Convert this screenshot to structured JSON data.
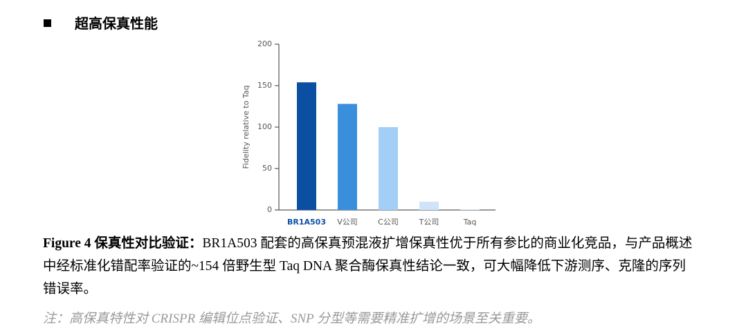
{
  "heading": "超高保真性能",
  "chart_data": {
    "type": "bar",
    "ylabel": "Fidelity relative to Taq",
    "categories": [
      "BR1A503",
      "V公司",
      "C公司",
      "T公司",
      "Taq"
    ],
    "values": [
      154,
      128,
      100,
      10,
      1
    ],
    "colors": [
      "#0b4fa3",
      "#3a8fdd",
      "#a3cff6",
      "#cfe4f8",
      "#e3eefa"
    ],
    "ylim": [
      0,
      200
    ],
    "yticks": [
      0,
      50,
      100,
      150,
      200
    ],
    "grid": false
  },
  "caption": {
    "label": "Figure 4  保真性对比验证：",
    "text": "BR1A503 配套的高保真预混液扩增保真性优于所有参比的商业化竞品，与产品概述中经标准化错配率验证的~154 倍野生型 Taq DNA 聚合酶保真性结论一致，可大幅降低下游测序、克隆的序列错误率。"
  },
  "note": "注：高保真特性对 CRISPR 编辑位点验证、SNP 分型等需要精准扩增的场景至关重要。"
}
